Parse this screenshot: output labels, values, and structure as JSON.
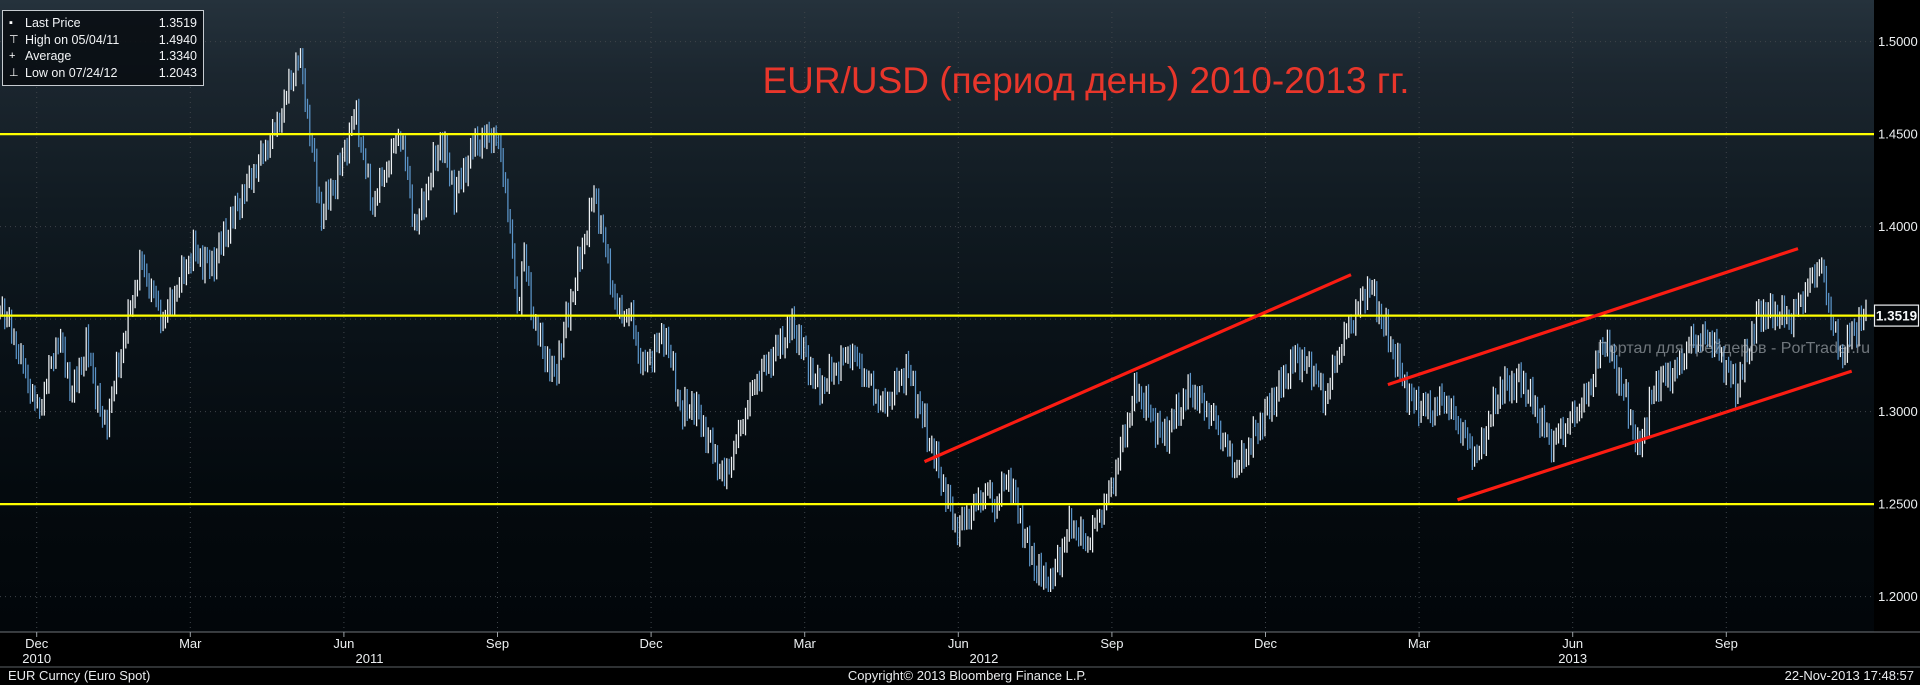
{
  "title": {
    "text": "EUR/USD (период день) 2010-2013 гг.",
    "color": "#e8362b"
  },
  "watermark": "Портал для трейдеров - PorTrader.ru",
  "legend": {
    "rows": [
      {
        "icon": "last-price-marker",
        "glyph": "▪",
        "label": "Last Price",
        "value": "1.3519"
      },
      {
        "icon": "high-marker",
        "glyph": "⊤",
        "label": "High on 05/04/11",
        "value": "1.4940"
      },
      {
        "icon": "average-marker",
        "glyph": "+",
        "label": "Average",
        "value": "1.3340"
      },
      {
        "icon": "low-marker",
        "glyph": "⊥",
        "label": "Low on 07/24/12",
        "value": "1.2043"
      }
    ]
  },
  "footer": {
    "left": "EUR Curncy (Euro Spot)",
    "center": "Copyright© 2013 Bloomberg Finance L.P.",
    "right": "22-Nov-2013 17:48:57"
  },
  "chart_data": {
    "type": "line",
    "style": "ohlc-daily-bars",
    "title": "EUR/USD (период день) 2010-2013 гг.",
    "x_unit": "months since 2010-12-01 (fractional)",
    "ylim": [
      1.18,
      1.516
    ],
    "grid": "dotted",
    "stats": {
      "last_price": 1.3519,
      "high_date": "05/04/11",
      "high": 1.494,
      "average": 1.334,
      "low_date": "07/24/12",
      "low": 1.2043
    },
    "y_axis": {
      "grid": [
        1.5,
        1.45,
        1.4,
        1.35,
        1.3,
        1.25,
        1.2
      ],
      "ticks": [
        {
          "price": 1.5,
          "label": "1.5000"
        },
        {
          "price": 1.45,
          "label": "1.4500"
        },
        {
          "price": 1.4,
          "label": "1.4000"
        },
        {
          "price": 1.3,
          "label": "1.3000"
        },
        {
          "price": 1.25,
          "label": "1.2500"
        },
        {
          "price": 1.2,
          "label": "1.2000"
        }
      ],
      "last_price_badge": {
        "price": 1.3519,
        "label": "1.3519"
      }
    },
    "x_axis": {
      "month_ticks": [
        {
          "m": 0,
          "label": "Dec"
        },
        {
          "m": 3,
          "label": "Mar"
        },
        {
          "m": 6,
          "label": "Jun"
        },
        {
          "m": 9,
          "label": "Sep"
        },
        {
          "m": 12,
          "label": "Dec"
        },
        {
          "m": 15,
          "label": "Mar"
        },
        {
          "m": 18,
          "label": "Jun"
        },
        {
          "m": 21,
          "label": "Sep"
        },
        {
          "m": 24,
          "label": "Dec"
        },
        {
          "m": 27,
          "label": "Mar"
        },
        {
          "m": 30,
          "label": "Jun"
        },
        {
          "m": 33,
          "label": "Sep"
        }
      ],
      "year_labels": [
        {
          "m": 0,
          "label": "2010"
        },
        {
          "m": 6.5,
          "label": "2011"
        },
        {
          "m": 18.5,
          "label": "2012"
        },
        {
          "m": 30,
          "label": "2013"
        }
      ]
    },
    "reference_lines": [
      {
        "price": 1.45
      },
      {
        "price": 1.3519
      },
      {
        "price": 1.25
      }
    ],
    "trend_lines": [
      {
        "from": [
          17.34,
          1.273
        ],
        "to": [
          25.67,
          1.374
        ]
      },
      {
        "from": [
          26.39,
          1.3146
        ],
        "to": [
          34.4,
          1.3881
        ]
      },
      {
        "from": [
          27.75,
          1.2523
        ],
        "to": [
          35.45,
          1.3219
        ]
      }
    ],
    "colors": {
      "up": "#eef2f5",
      "down": "#5b94c8",
      "reference": "#ffff00",
      "trend": "#fb1c12",
      "grid": "#3f444a"
    },
    "series": [
      {
        "name": "EUR/USD",
        "points": [
          [
            -0.72,
            1.36
          ],
          [
            -0.4,
            1.336
          ],
          [
            0.03,
            1.299
          ],
          [
            0.43,
            1.341
          ],
          [
            0.7,
            1.309
          ],
          [
            0.97,
            1.336
          ],
          [
            1.32,
            1.29
          ],
          [
            2.03,
            1.381
          ],
          [
            2.47,
            1.349
          ],
          [
            3.05,
            1.387
          ],
          [
            3.4,
            1.378
          ],
          [
            4.0,
            1.416
          ],
          [
            4.7,
            1.455
          ],
          [
            5.13,
            1.494
          ],
          [
            5.55,
            1.406
          ],
          [
            5.9,
            1.43
          ],
          [
            6.23,
            1.462
          ],
          [
            6.55,
            1.411
          ],
          [
            7.1,
            1.452
          ],
          [
            7.4,
            1.398
          ],
          [
            7.9,
            1.448
          ],
          [
            8.17,
            1.417
          ],
          [
            8.55,
            1.445
          ],
          [
            8.97,
            1.45
          ],
          [
            9.17,
            1.42
          ],
          [
            9.4,
            1.352
          ],
          [
            9.5,
            1.387
          ],
          [
            9.73,
            1.346
          ],
          [
            10.1,
            1.318
          ],
          [
            10.9,
            1.419
          ],
          [
            11.33,
            1.354
          ],
          [
            11.6,
            1.352
          ],
          [
            11.83,
            1.323
          ],
          [
            12.27,
            1.343
          ],
          [
            12.6,
            1.298
          ],
          [
            12.8,
            1.305
          ],
          [
            13.0,
            1.293
          ],
          [
            13.43,
            1.263
          ],
          [
            14.03,
            1.316
          ],
          [
            14.77,
            1.347
          ],
          [
            15.27,
            1.312
          ],
          [
            15.9,
            1.333
          ],
          [
            16.53,
            1.302
          ],
          [
            17.0,
            1.324
          ],
          [
            17.97,
            1.236
          ],
          [
            18.57,
            1.258
          ],
          [
            18.7,
            1.247
          ],
          [
            18.97,
            1.266
          ],
          [
            19.43,
            1.22
          ],
          [
            19.77,
            1.2043
          ],
          [
            20.2,
            1.24
          ],
          [
            20.5,
            1.228
          ],
          [
            20.97,
            1.257
          ],
          [
            21.47,
            1.313
          ],
          [
            22.0,
            1.286
          ],
          [
            22.53,
            1.312
          ],
          [
            23.0,
            1.296
          ],
          [
            23.43,
            1.268
          ],
          [
            24.0,
            1.299
          ],
          [
            24.6,
            1.33
          ],
          [
            25.0,
            1.32
          ],
          [
            25.13,
            1.305
          ],
          [
            25.5,
            1.338
          ],
          [
            26.03,
            1.369
          ],
          [
            26.83,
            1.306
          ],
          [
            27.27,
            1.3
          ],
          [
            27.47,
            1.308
          ],
          [
            27.9,
            1.286
          ],
          [
            28.13,
            1.2746
          ],
          [
            28.57,
            1.312
          ],
          [
            29.0,
            1.317
          ],
          [
            29.3,
            1.3
          ],
          [
            29.57,
            1.283
          ],
          [
            29.9,
            1.293
          ],
          [
            30.27,
            1.308
          ],
          [
            30.63,
            1.34
          ],
          [
            31.1,
            1.301
          ],
          [
            31.27,
            1.278
          ],
          [
            31.63,
            1.316
          ],
          [
            32.03,
            1.322
          ],
          [
            32.3,
            1.338
          ],
          [
            32.7,
            1.34
          ],
          [
            33.03,
            1.322
          ],
          [
            33.2,
            1.312
          ],
          [
            33.63,
            1.3535
          ],
          [
            34.0,
            1.353
          ],
          [
            34.27,
            1.35
          ],
          [
            34.83,
            1.381
          ],
          [
            35.1,
            1.344
          ],
          [
            35.23,
            1.3295
          ],
          [
            35.5,
            1.345
          ],
          [
            35.73,
            1.3519
          ]
        ]
      }
    ]
  }
}
